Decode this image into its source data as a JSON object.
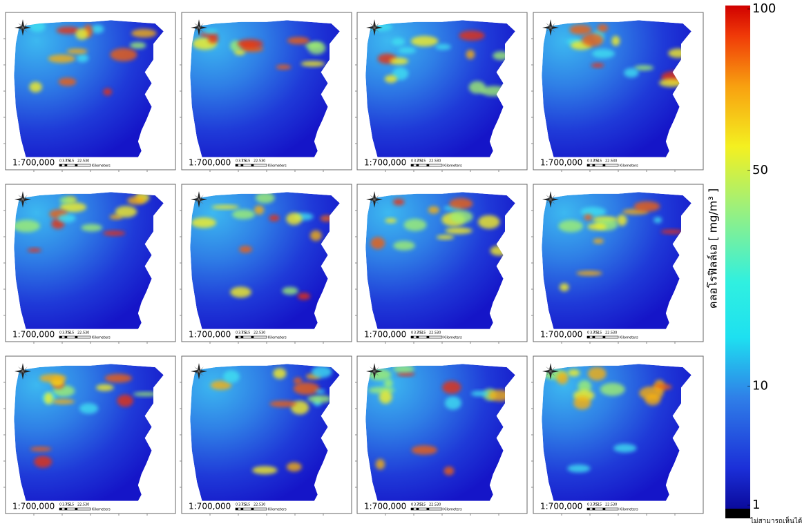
{
  "panels": [
    {
      "scale": "1:700,000"
    },
    {
      "scale": "1:700,000"
    },
    {
      "scale": "1:700,000"
    },
    {
      "scale": "1:700,000"
    },
    {
      "scale": "1:700,000"
    },
    {
      "scale": "1:700,000"
    },
    {
      "scale": "1:700,000"
    },
    {
      "scale": "1:700,000"
    },
    {
      "scale": "1:700,000"
    },
    {
      "scale": "1:700,000"
    },
    {
      "scale": "1:700,000"
    },
    {
      "scale": "1:700,000"
    }
  ],
  "scalebar": {
    "labels": [
      "0",
      "3.75",
      "7.5",
      "15",
      "22.5",
      "30"
    ],
    "unit": "Kilometers"
  },
  "colorbar": {
    "title": "คลอโรฟิลล์เอ [ mg/m³ ]",
    "range": [
      1,
      100
    ],
    "ticks": [
      1,
      10,
      50,
      100
    ],
    "scale": "sqrt",
    "no_data_label": "ไม่สามารถเห็นได้",
    "no_data_color": "#000000"
  }
}
